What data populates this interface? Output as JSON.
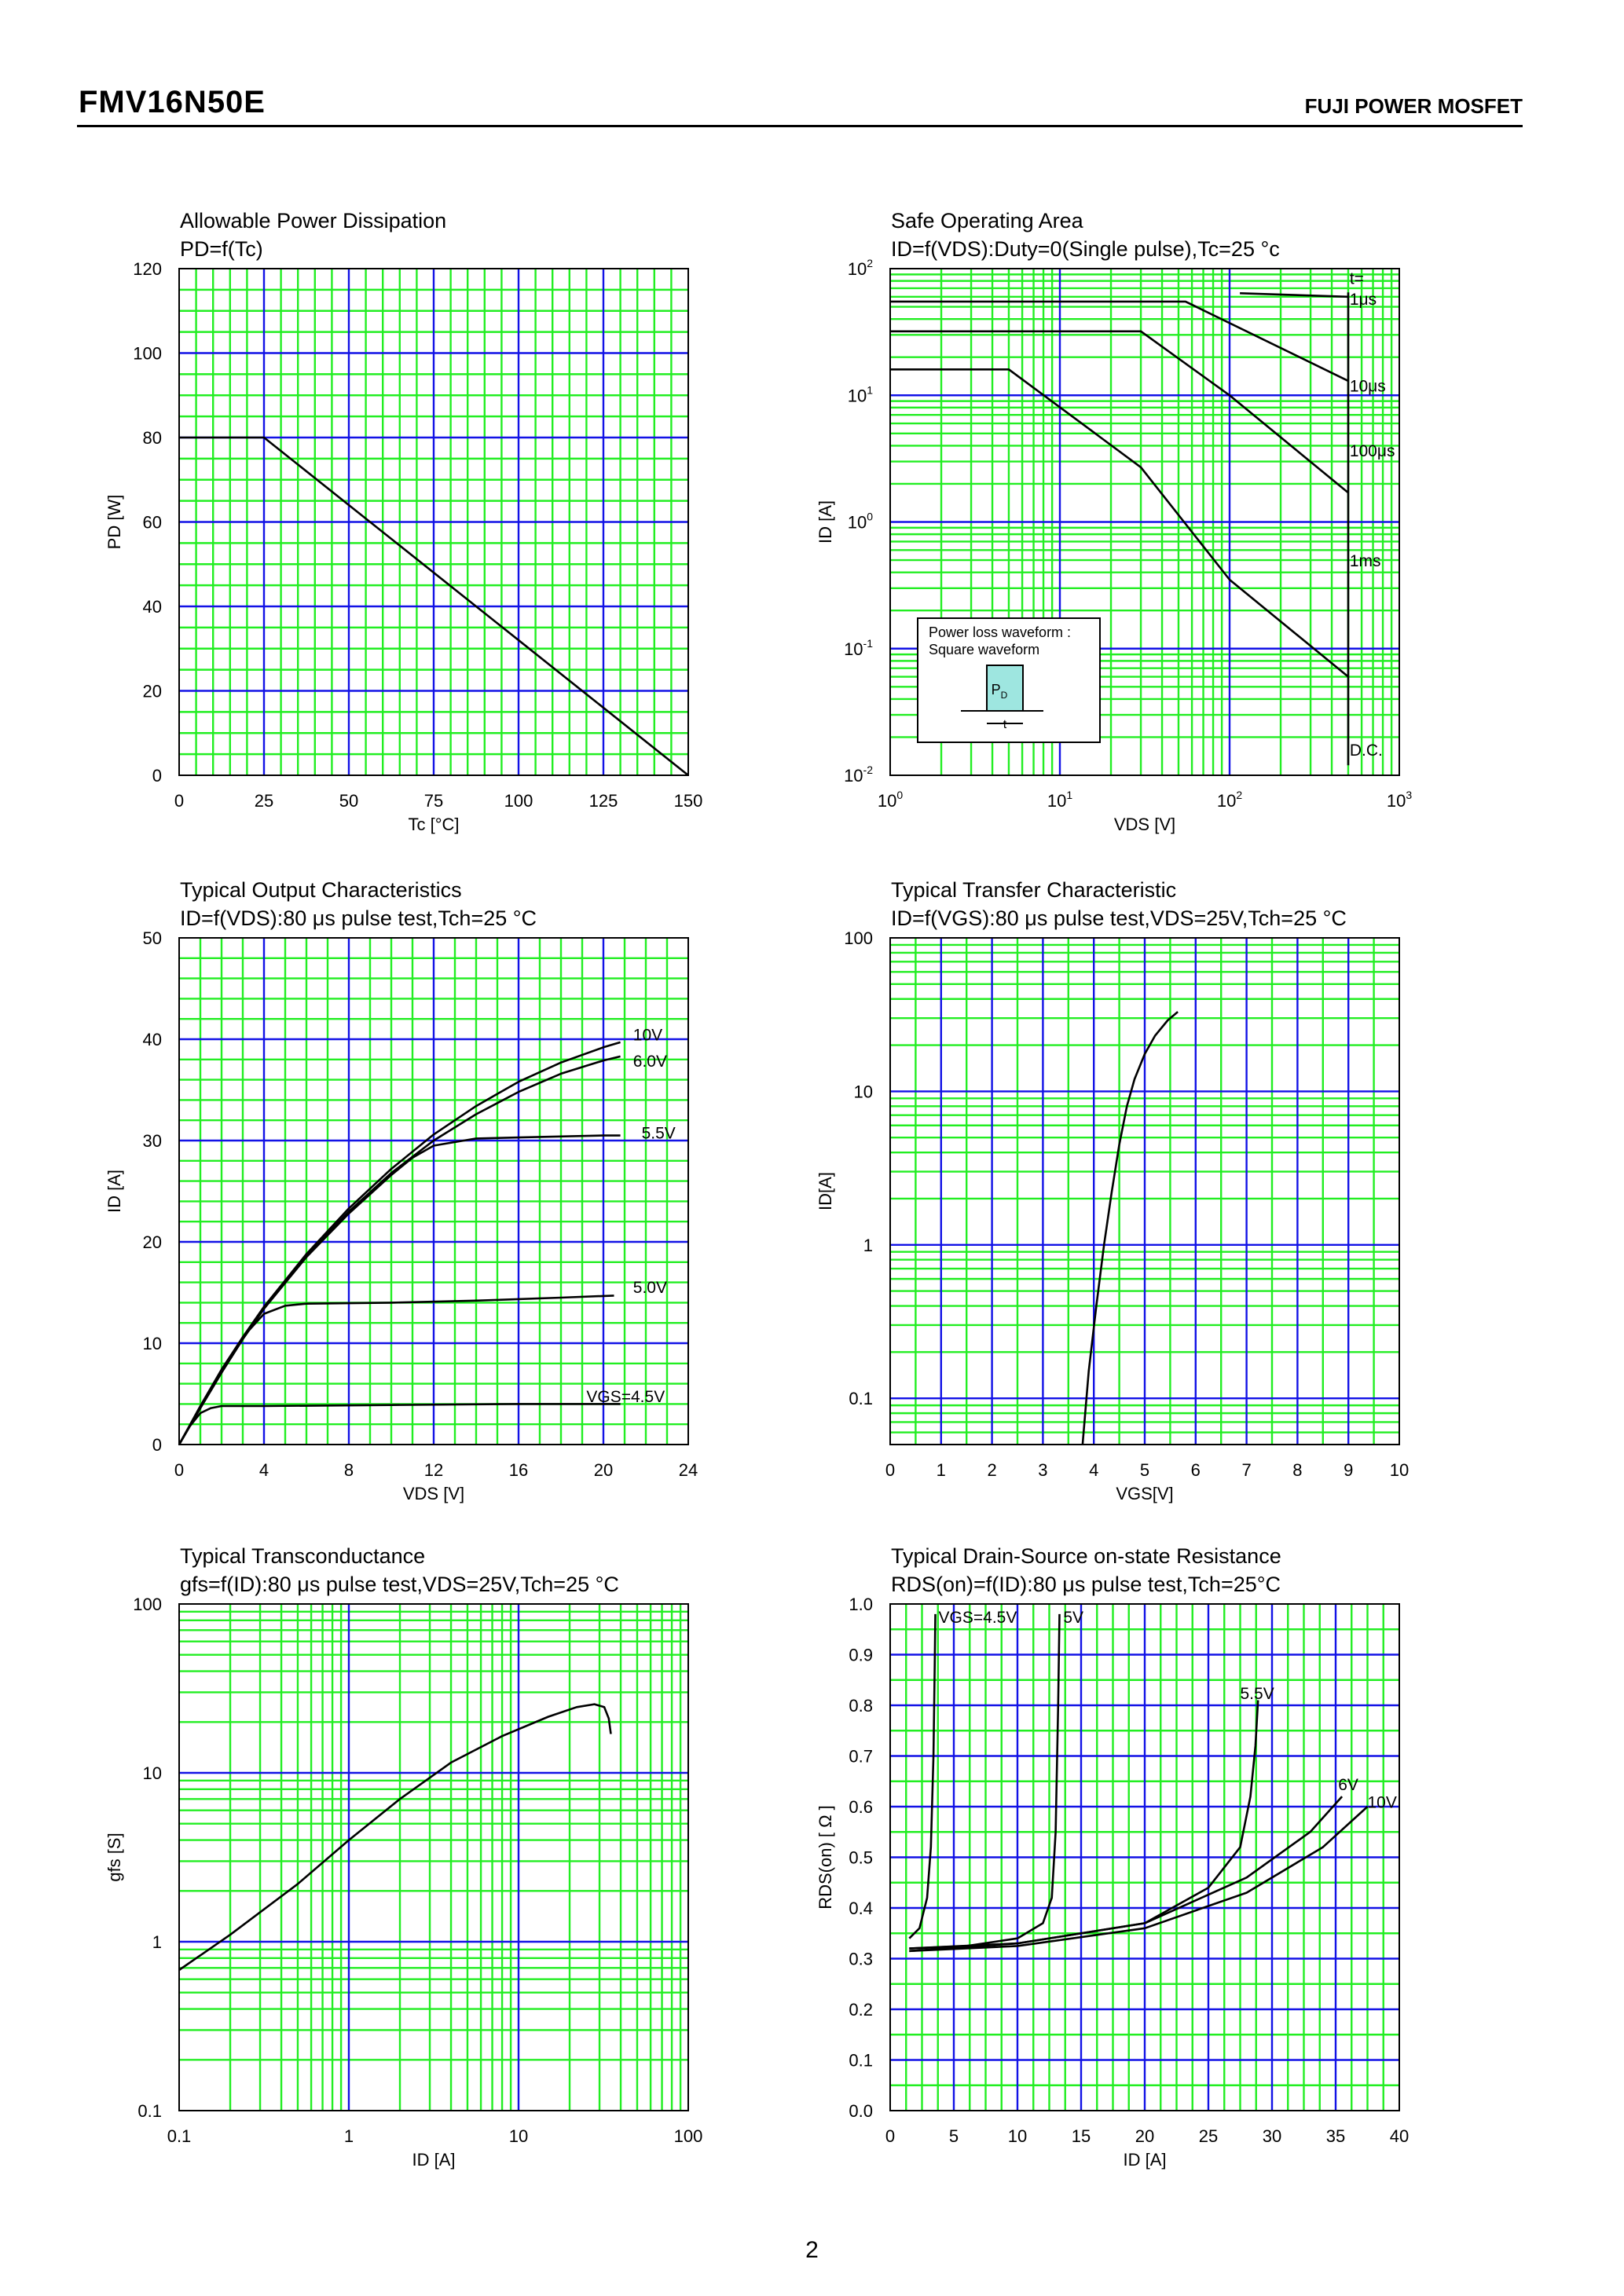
{
  "header": {
    "part_number": "FMV16N50E",
    "maker": "FUJI POWER MOSFET"
  },
  "page_number": "2",
  "colors": {
    "grid_major": "#1212e6",
    "grid_minor": "#22ee22",
    "curve": "#000000",
    "frame": "#000000"
  },
  "chart_data": [
    {
      "id": "pd",
      "type": "line",
      "title": "Allowable Power Dissipation",
      "subtitle": "PD=f(Tc)",
      "xlabel": "Tc [°C]",
      "ylabel": "PD [W]",
      "xlim": [
        0,
        150
      ],
      "ylim": [
        0,
        120
      ],
      "xscale": "linear",
      "yscale": "linear",
      "xticks": [
        "0",
        "25",
        "50",
        "75",
        "100",
        "125",
        "150"
      ],
      "yticks": [
        "0",
        "20",
        "40",
        "60",
        "80",
        "100",
        "120"
      ],
      "series": [
        {
          "x": [
            0,
            25,
            150
          ],
          "y": [
            80,
            80,
            0
          ]
        }
      ],
      "annotations": []
    },
    {
      "id": "soa",
      "type": "line",
      "title": "Safe Operating Area",
      "subtitle": "ID=f(VDS):Duty=0(Single pulse),Tc=25 °c",
      "xlabel": "VDS [V]",
      "ylabel": "ID [A]",
      "xlim": [
        1,
        1000
      ],
      "ylim": [
        0.01,
        100
      ],
      "xscale": "log",
      "yscale": "log",
      "xticks": [
        "10⁰",
        "10¹",
        "10²",
        "10³"
      ],
      "yticks": [
        "10⁻²",
        "10⁻¹",
        "10⁰",
        "10¹",
        "10²"
      ],
      "series": [
        {
          "name": "1μs",
          "x": [
            115,
            500
          ],
          "y": [
            64,
            60
          ]
        },
        {
          "name": "10μs",
          "x": [
            1,
            55,
            500
          ],
          "y": [
            55,
            55,
            13
          ]
        },
        {
          "name": "100μs",
          "x": [
            1,
            30,
            100,
            500
          ],
          "y": [
            32,
            32,
            10,
            1.7
          ]
        },
        {
          "name": "1ms",
          "x": [
            1,
            5,
            30,
            100,
            500
          ],
          "y": [
            16,
            16,
            2.7,
            0.35,
            0.06
          ]
        },
        {
          "name": "D.C.",
          "x": [
            500,
            500
          ],
          "y": [
            0.012,
            65
          ]
        }
      ],
      "annotations": [
        {
          "text": "t=",
          "x": 510,
          "y": 85
        },
        {
          "text": "1μs",
          "x": 510,
          "y": 58
        },
        {
          "text": "10μs",
          "x": 510,
          "y": 12
        },
        {
          "text": "100μs",
          "x": 510,
          "y": 3.7
        },
        {
          "text": "1ms",
          "x": 510,
          "y": 0.5
        },
        {
          "text": "D.C.",
          "x": 510,
          "y": 0.016
        }
      ],
      "inset": {
        "lines": [
          "Power loss waveform :",
          "Square waveform"
        ],
        "pulse_label": "P",
        "pulse_sub": "D",
        "width_label": "t"
      }
    },
    {
      "id": "output",
      "type": "line",
      "title": "Typical Output Characteristics",
      "subtitle": "ID=f(VDS):80 μs pulse test,Tch=25 °C",
      "xlabel": "VDS [V]",
      "ylabel": "ID [A]",
      "xlim": [
        0,
        24
      ],
      "ylim": [
        0,
        50
      ],
      "xscale": "linear",
      "yscale": "linear",
      "xticks": [
        "0",
        "4",
        "8",
        "12",
        "16",
        "20",
        "24"
      ],
      "yticks": [
        "0",
        "10",
        "20",
        "30",
        "40",
        "50"
      ],
      "series": [
        {
          "name": "10V",
          "x": [
            0,
            1,
            2,
            3,
            4,
            6,
            8,
            10,
            12,
            14,
            16,
            18,
            20,
            20.8
          ],
          "y": [
            0,
            3.7,
            7.3,
            10.6,
            13.6,
            18.8,
            23.3,
            27.2,
            30.6,
            33.4,
            35.8,
            37.7,
            39.2,
            39.7
          ]
        },
        {
          "name": "6.0V",
          "x": [
            0,
            1,
            2,
            3,
            4,
            6,
            8,
            10,
            12,
            14,
            16,
            18,
            20,
            20.8
          ],
          "y": [
            0,
            3.6,
            7.1,
            10.4,
            13.4,
            18.6,
            23.0,
            26.8,
            30.0,
            32.6,
            34.8,
            36.6,
            37.9,
            38.3
          ]
        },
        {
          "name": "5.5V",
          "x": [
            0,
            1,
            2,
            3,
            4,
            6,
            8,
            10,
            11,
            12,
            14,
            16,
            18,
            20,
            20.8
          ],
          "y": [
            0,
            3.6,
            7.1,
            10.4,
            13.4,
            18.5,
            22.8,
            26.6,
            28.3,
            29.5,
            30.2,
            30.3,
            30.4,
            30.5,
            30.5
          ]
        },
        {
          "name": "5.0V",
          "x": [
            0,
            1,
            2,
            3,
            4,
            5,
            6,
            10,
            14,
            18,
            20.5
          ],
          "y": [
            0,
            3.8,
            7.4,
            10.6,
            12.9,
            13.7,
            13.9,
            14.0,
            14.2,
            14.5,
            14.7
          ]
        },
        {
          "name": "VGS=4.5V",
          "x": [
            0,
            0.5,
            1,
            1.5,
            2,
            4,
            10,
            16,
            20.8
          ],
          "y": [
            0,
            1.8,
            3.1,
            3.6,
            3.8,
            3.8,
            3.9,
            4.0,
            4.0
          ]
        }
      ],
      "annotations": [
        {
          "text": "10V",
          "x": 21.4,
          "y": 40.5
        },
        {
          "text": "6.0V",
          "x": 21.4,
          "y": 37.9
        },
        {
          "text": "5.5V",
          "x": 21.8,
          "y": 30.8
        },
        {
          "text": "5.0V",
          "x": 21.4,
          "y": 15.6
        },
        {
          "text": "VGS=4.5V",
          "x": 19.2,
          "y": 4.8
        }
      ]
    },
    {
      "id": "transfer",
      "type": "line",
      "title": "Typical Transfer Characteristic",
      "subtitle": "ID=f(VGS):80 μs pulse test,VDS=25V,Tch=25 °C",
      "xlabel": "VGS[V]",
      "ylabel": "ID[A]",
      "xlim": [
        0,
        10
      ],
      "ylim": [
        0.05,
        100
      ],
      "xscale": "linear",
      "yscale": "log",
      "xticks": [
        "0",
        "1",
        "2",
        "3",
        "4",
        "5",
        "6",
        "7",
        "8",
        "9",
        "10"
      ],
      "yticks": [
        "0.1",
        "1",
        "10",
        "100"
      ],
      "yticks_at": [
        0.1,
        1,
        10,
        100
      ],
      "series": [
        {
          "x": [
            3.78,
            3.9,
            4.05,
            4.2,
            4.35,
            4.5,
            4.65,
            4.8,
            5.0,
            5.2,
            5.45,
            5.65
          ],
          "y": [
            0.05,
            0.15,
            0.4,
            1.0,
            2.2,
            4.5,
            8.0,
            12.0,
            17.5,
            23.0,
            29.0,
            33.0
          ]
        }
      ],
      "annotations": []
    },
    {
      "id": "gfs",
      "type": "line",
      "title": "Typical Transconductance",
      "subtitle": "gfs=f(ID):80 μs pulse test,VDS=25V,Tch=25 °C",
      "xlabel": "ID [A]",
      "ylabel": "gfs [S]",
      "xlim": [
        0.1,
        100
      ],
      "ylim": [
        0.1,
        100
      ],
      "xscale": "log",
      "yscale": "log",
      "xticks": [
        "0.1",
        "1",
        "10",
        "100"
      ],
      "yticks": [
        "0.1",
        "1",
        "10",
        "100"
      ],
      "series": [
        {
          "x": [
            0.1,
            0.2,
            0.5,
            1,
            2,
            4,
            8,
            15,
            22,
            28,
            32,
            34,
            35
          ],
          "y": [
            0.68,
            1.1,
            2.2,
            4.0,
            7.0,
            11.5,
            16.5,
            21.5,
            24.5,
            25.5,
            24.5,
            21.0,
            17.0
          ]
        }
      ],
      "annotations": []
    },
    {
      "id": "rds",
      "type": "line",
      "title": "Typical Drain-Source on-state Resistance",
      "subtitle": "RDS(on)=f(ID):80 μs pulse test,Tch=25°C",
      "xlabel": "ID [A]",
      "ylabel": "RDS(on) [ Ω ]",
      "xlim": [
        0,
        40
      ],
      "ylim": [
        0,
        1.0
      ],
      "xscale": "linear",
      "yscale": "linear",
      "xticks": [
        "0",
        "5",
        "10",
        "15",
        "20",
        "25",
        "30",
        "35",
        "40"
      ],
      "yticks": [
        "0.0",
        "0.1",
        "0.2",
        "0.3",
        "0.4",
        "0.5",
        "0.6",
        "0.7",
        "0.8",
        "0.9",
        "1.0"
      ],
      "series": [
        {
          "name": "VGS=4.5V",
          "x": [
            1.5,
            2.3,
            2.9,
            3.2,
            3.4,
            3.5,
            3.55
          ],
          "y": [
            0.34,
            0.36,
            0.42,
            0.52,
            0.7,
            0.88,
            0.98
          ]
        },
        {
          "name": "5V",
          "x": [
            1.5,
            6,
            10,
            12,
            12.7,
            13.0,
            13.2,
            13.3
          ],
          "y": [
            0.32,
            0.325,
            0.34,
            0.37,
            0.42,
            0.55,
            0.8,
            0.98
          ]
        },
        {
          "name": "5.5V",
          "x": [
            1.5,
            10,
            20,
            25,
            27.5,
            28.3,
            28.7,
            28.9
          ],
          "y": [
            0.32,
            0.33,
            0.37,
            0.44,
            0.52,
            0.62,
            0.72,
            0.81
          ]
        },
        {
          "name": "6V",
          "x": [
            1.5,
            10,
            20,
            28,
            33,
            35.5
          ],
          "y": [
            0.315,
            0.33,
            0.37,
            0.46,
            0.55,
            0.62
          ]
        },
        {
          "name": "10V",
          "x": [
            1.5,
            10,
            20,
            28,
            34,
            37.5
          ],
          "y": [
            0.315,
            0.325,
            0.36,
            0.43,
            0.52,
            0.6
          ]
        }
      ],
      "annotations": [
        {
          "text": "VGS=4.5V",
          "x": 3.8,
          "y": 0.975
        },
        {
          "text": "5V",
          "x": 13.6,
          "y": 0.975
        },
        {
          "text": "5.5V",
          "x": 27.5,
          "y": 0.825
        },
        {
          "text": "6V",
          "x": 35.2,
          "y": 0.645
        },
        {
          "text": "10V",
          "x": 37.5,
          "y": 0.61
        }
      ]
    }
  ]
}
